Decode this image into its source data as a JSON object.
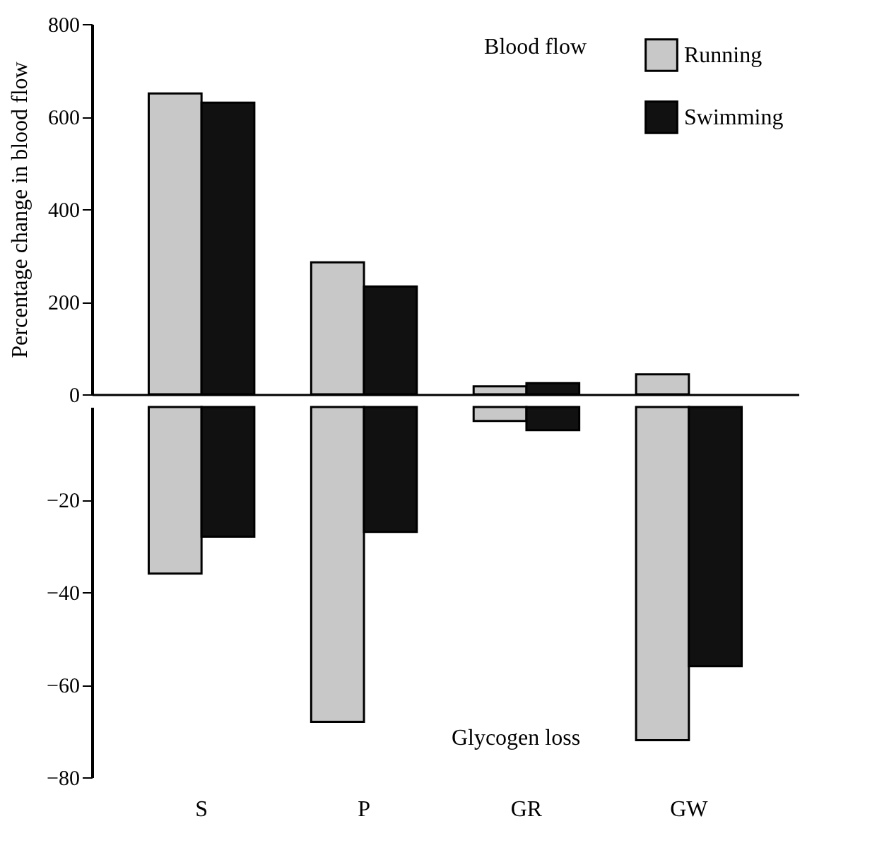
{
  "chart_data": [
    {
      "type": "bar",
      "categories": [
        null,
        null,
        null,
        null
      ],
      "ylabel": "Percentage change in blood flow",
      "ylim": [
        0,
        800
      ],
      "yticks": [
        0,
        200,
        400,
        600,
        800
      ],
      "tick_labels": "y",
      "legend": "top right",
      "annotations": [
        "Blood flow"
      ],
      "series": [
        {
          "name": "Running",
          "color": "#c8c8c8",
          "values": [
            650,
            285,
            17,
            43
          ]
        },
        {
          "name": "Swimming",
          "color": "#111111",
          "values": [
            630,
            233,
            24,
            null
          ]
        }
      ]
    },
    {
      "type": "bar",
      "categories": [
        "S",
        "P",
        "GR",
        "GW"
      ],
      "ylim": [
        -80,
        0
      ],
      "yticks": [
        -20,
        -40,
        -60,
        -80
      ],
      "annotations": [
        "Glycogen loss"
      ],
      "series": [
        {
          "color": "#c8c8c8",
          "values": [
            -36,
            -68,
            -3,
            -72
          ]
        },
        {
          "color": "#111111",
          "values": [
            -28,
            -27,
            -5,
            -56
          ]
        }
      ]
    }
  ]
}
